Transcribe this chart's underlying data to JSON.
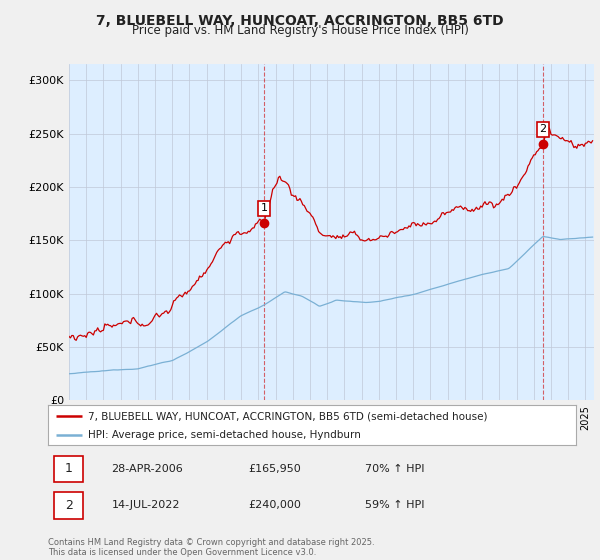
{
  "title": "7, BLUEBELL WAY, HUNCOAT, ACCRINGTON, BB5 6TD",
  "subtitle": "Price paid vs. HM Land Registry's House Price Index (HPI)",
  "ylabel_ticks": [
    "£0",
    "£50K",
    "£100K",
    "£150K",
    "£200K",
    "£250K",
    "£300K"
  ],
  "ytick_values": [
    0,
    50000,
    100000,
    150000,
    200000,
    250000,
    300000
  ],
  "ylim": [
    0,
    315000
  ],
  "xlim_start": 1995.0,
  "xlim_end": 2025.5,
  "red_color": "#cc0000",
  "blue_color": "#7ab0d4",
  "plot_bg_color": "#ddeeff",
  "marker1_date": 2006.32,
  "marker2_date": 2022.54,
  "marker1_value": 165950,
  "marker2_value": 240000,
  "legend_line1": "7, BLUEBELL WAY, HUNCOAT, ACCRINGTON, BB5 6TD (semi-detached house)",
  "legend_line2": "HPI: Average price, semi-detached house, Hyndburn",
  "annotation1_date": "28-APR-2006",
  "annotation1_price": "£165,950",
  "annotation1_hpi": "70% ↑ HPI",
  "annotation2_date": "14-JUL-2022",
  "annotation2_price": "£240,000",
  "annotation2_hpi": "59% ↑ HPI",
  "copyright_text": "Contains HM Land Registry data © Crown copyright and database right 2025.\nThis data is licensed under the Open Government Licence v3.0.",
  "bg_color": "#f0f0f0"
}
